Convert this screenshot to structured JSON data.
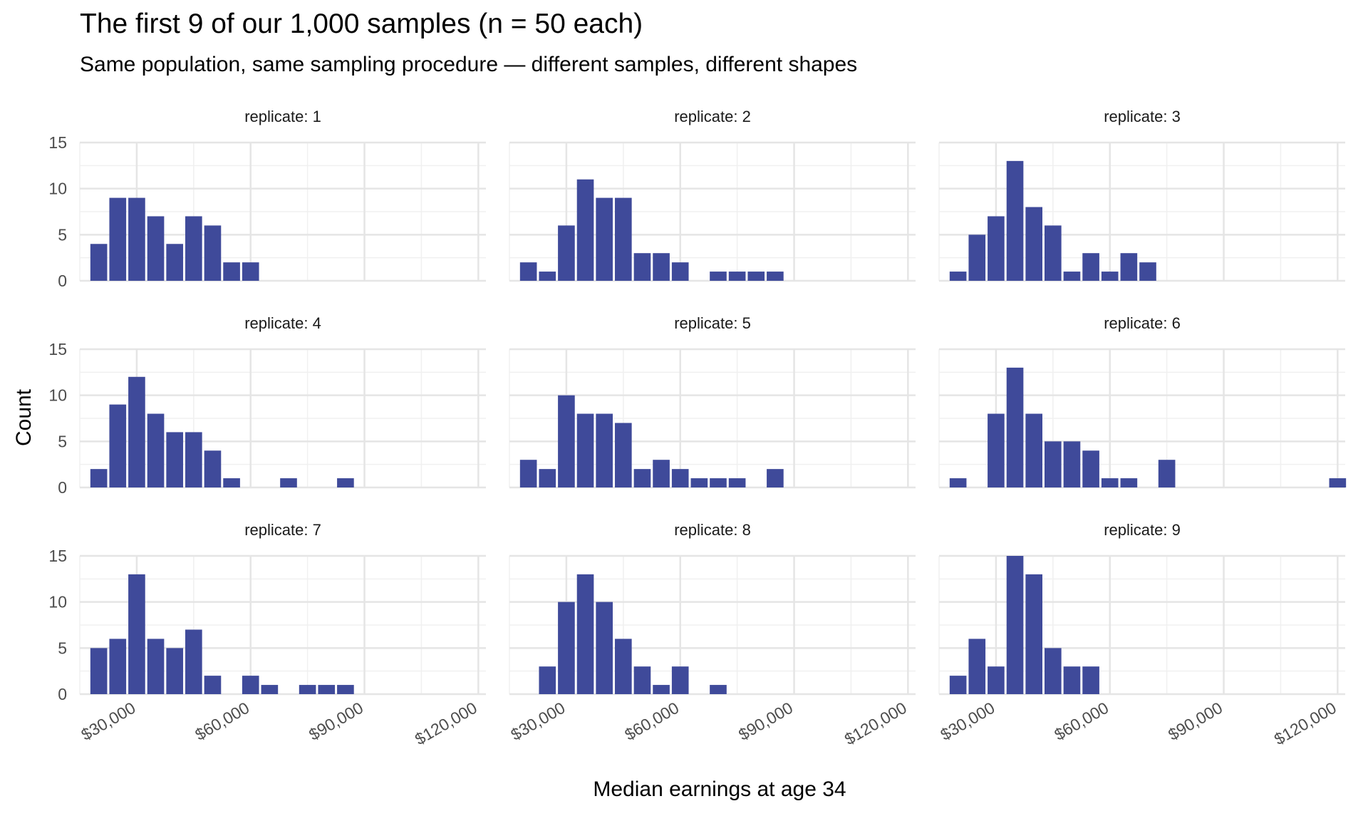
{
  "chart_data": {
    "type": "bar",
    "title": "The first 9 of our 1,000 samples (n = 50 each)",
    "subtitle": "Same population, same sampling procedure — different samples, different shapes",
    "xlabel": "Median earnings at age 34",
    "ylabel": "Count",
    "facet_label_prefix": "replicate: ",
    "xlim": [
      15000,
      122000
    ],
    "ylim": [
      0,
      15
    ],
    "x_ticks": [
      30000,
      60000,
      90000,
      120000
    ],
    "x_tick_labels": [
      "$30,000",
      "$60,000",
      "$90,000",
      "$120,000"
    ],
    "y_ticks": [
      0,
      5,
      10,
      15
    ],
    "y_tick_labels": [
      "0",
      "5",
      "10",
      "15"
    ],
    "grid": true,
    "legend": "none",
    "bin_width": 5000,
    "bar_color": "#3f4a9a",
    "panels": [
      {
        "replicate": "1",
        "bins": [
          {
            "x": 20000,
            "count": 4
          },
          {
            "x": 25000,
            "count": 9
          },
          {
            "x": 30000,
            "count": 9
          },
          {
            "x": 35000,
            "count": 7
          },
          {
            "x": 40000,
            "count": 4
          },
          {
            "x": 45000,
            "count": 7
          },
          {
            "x": 50000,
            "count": 6
          },
          {
            "x": 55000,
            "count": 2
          },
          {
            "x": 60000,
            "count": 2
          }
        ]
      },
      {
        "replicate": "2",
        "bins": [
          {
            "x": 20000,
            "count": 2
          },
          {
            "x": 25000,
            "count": 1
          },
          {
            "x": 30000,
            "count": 6
          },
          {
            "x": 35000,
            "count": 11
          },
          {
            "x": 40000,
            "count": 9
          },
          {
            "x": 45000,
            "count": 9
          },
          {
            "x": 50000,
            "count": 3
          },
          {
            "x": 55000,
            "count": 3
          },
          {
            "x": 60000,
            "count": 2
          },
          {
            "x": 70000,
            "count": 1
          },
          {
            "x": 75000,
            "count": 1
          },
          {
            "x": 80000,
            "count": 1
          },
          {
            "x": 85000,
            "count": 1
          }
        ]
      },
      {
        "replicate": "3",
        "bins": [
          {
            "x": 20000,
            "count": 1
          },
          {
            "x": 25000,
            "count": 5
          },
          {
            "x": 30000,
            "count": 7
          },
          {
            "x": 35000,
            "count": 13
          },
          {
            "x": 40000,
            "count": 8
          },
          {
            "x": 45000,
            "count": 6
          },
          {
            "x": 50000,
            "count": 1
          },
          {
            "x": 55000,
            "count": 3
          },
          {
            "x": 60000,
            "count": 1
          },
          {
            "x": 65000,
            "count": 3
          },
          {
            "x": 70000,
            "count": 2
          }
        ]
      },
      {
        "replicate": "4",
        "bins": [
          {
            "x": 20000,
            "count": 2
          },
          {
            "x": 25000,
            "count": 9
          },
          {
            "x": 30000,
            "count": 12
          },
          {
            "x": 35000,
            "count": 8
          },
          {
            "x": 40000,
            "count": 6
          },
          {
            "x": 45000,
            "count": 6
          },
          {
            "x": 50000,
            "count": 4
          },
          {
            "x": 55000,
            "count": 1
          },
          {
            "x": 70000,
            "count": 1
          },
          {
            "x": 85000,
            "count": 1
          }
        ]
      },
      {
        "replicate": "5",
        "bins": [
          {
            "x": 20000,
            "count": 3
          },
          {
            "x": 25000,
            "count": 2
          },
          {
            "x": 30000,
            "count": 10
          },
          {
            "x": 35000,
            "count": 8
          },
          {
            "x": 40000,
            "count": 8
          },
          {
            "x": 45000,
            "count": 7
          },
          {
            "x": 50000,
            "count": 2
          },
          {
            "x": 55000,
            "count": 3
          },
          {
            "x": 60000,
            "count": 2
          },
          {
            "x": 65000,
            "count": 1
          },
          {
            "x": 70000,
            "count": 1
          },
          {
            "x": 75000,
            "count": 1
          },
          {
            "x": 85000,
            "count": 2
          }
        ]
      },
      {
        "replicate": "6",
        "bins": [
          {
            "x": 20000,
            "count": 1
          },
          {
            "x": 30000,
            "count": 8
          },
          {
            "x": 35000,
            "count": 13
          },
          {
            "x": 40000,
            "count": 8
          },
          {
            "x": 45000,
            "count": 5
          },
          {
            "x": 50000,
            "count": 5
          },
          {
            "x": 55000,
            "count": 4
          },
          {
            "x": 60000,
            "count": 1
          },
          {
            "x": 65000,
            "count": 1
          },
          {
            "x": 75000,
            "count": 3
          },
          {
            "x": 120000,
            "count": 1
          }
        ]
      },
      {
        "replicate": "7",
        "bins": [
          {
            "x": 20000,
            "count": 5
          },
          {
            "x": 25000,
            "count": 6
          },
          {
            "x": 30000,
            "count": 13
          },
          {
            "x": 35000,
            "count": 6
          },
          {
            "x": 40000,
            "count": 5
          },
          {
            "x": 45000,
            "count": 7
          },
          {
            "x": 50000,
            "count": 2
          },
          {
            "x": 60000,
            "count": 2
          },
          {
            "x": 65000,
            "count": 1
          },
          {
            "x": 75000,
            "count": 1
          },
          {
            "x": 80000,
            "count": 1
          },
          {
            "x": 85000,
            "count": 1
          }
        ]
      },
      {
        "replicate": "8",
        "bins": [
          {
            "x": 25000,
            "count": 3
          },
          {
            "x": 30000,
            "count": 10
          },
          {
            "x": 35000,
            "count": 13
          },
          {
            "x": 40000,
            "count": 10
          },
          {
            "x": 45000,
            "count": 6
          },
          {
            "x": 50000,
            "count": 3
          },
          {
            "x": 55000,
            "count": 1
          },
          {
            "x": 60000,
            "count": 3
          },
          {
            "x": 70000,
            "count": 1
          }
        ]
      },
      {
        "replicate": "9",
        "bins": [
          {
            "x": 20000,
            "count": 2
          },
          {
            "x": 25000,
            "count": 6
          },
          {
            "x": 30000,
            "count": 3
          },
          {
            "x": 35000,
            "count": 15
          },
          {
            "x": 40000,
            "count": 13
          },
          {
            "x": 45000,
            "count": 5
          },
          {
            "x": 50000,
            "count": 3
          },
          {
            "x": 55000,
            "count": 3
          }
        ]
      }
    ]
  }
}
